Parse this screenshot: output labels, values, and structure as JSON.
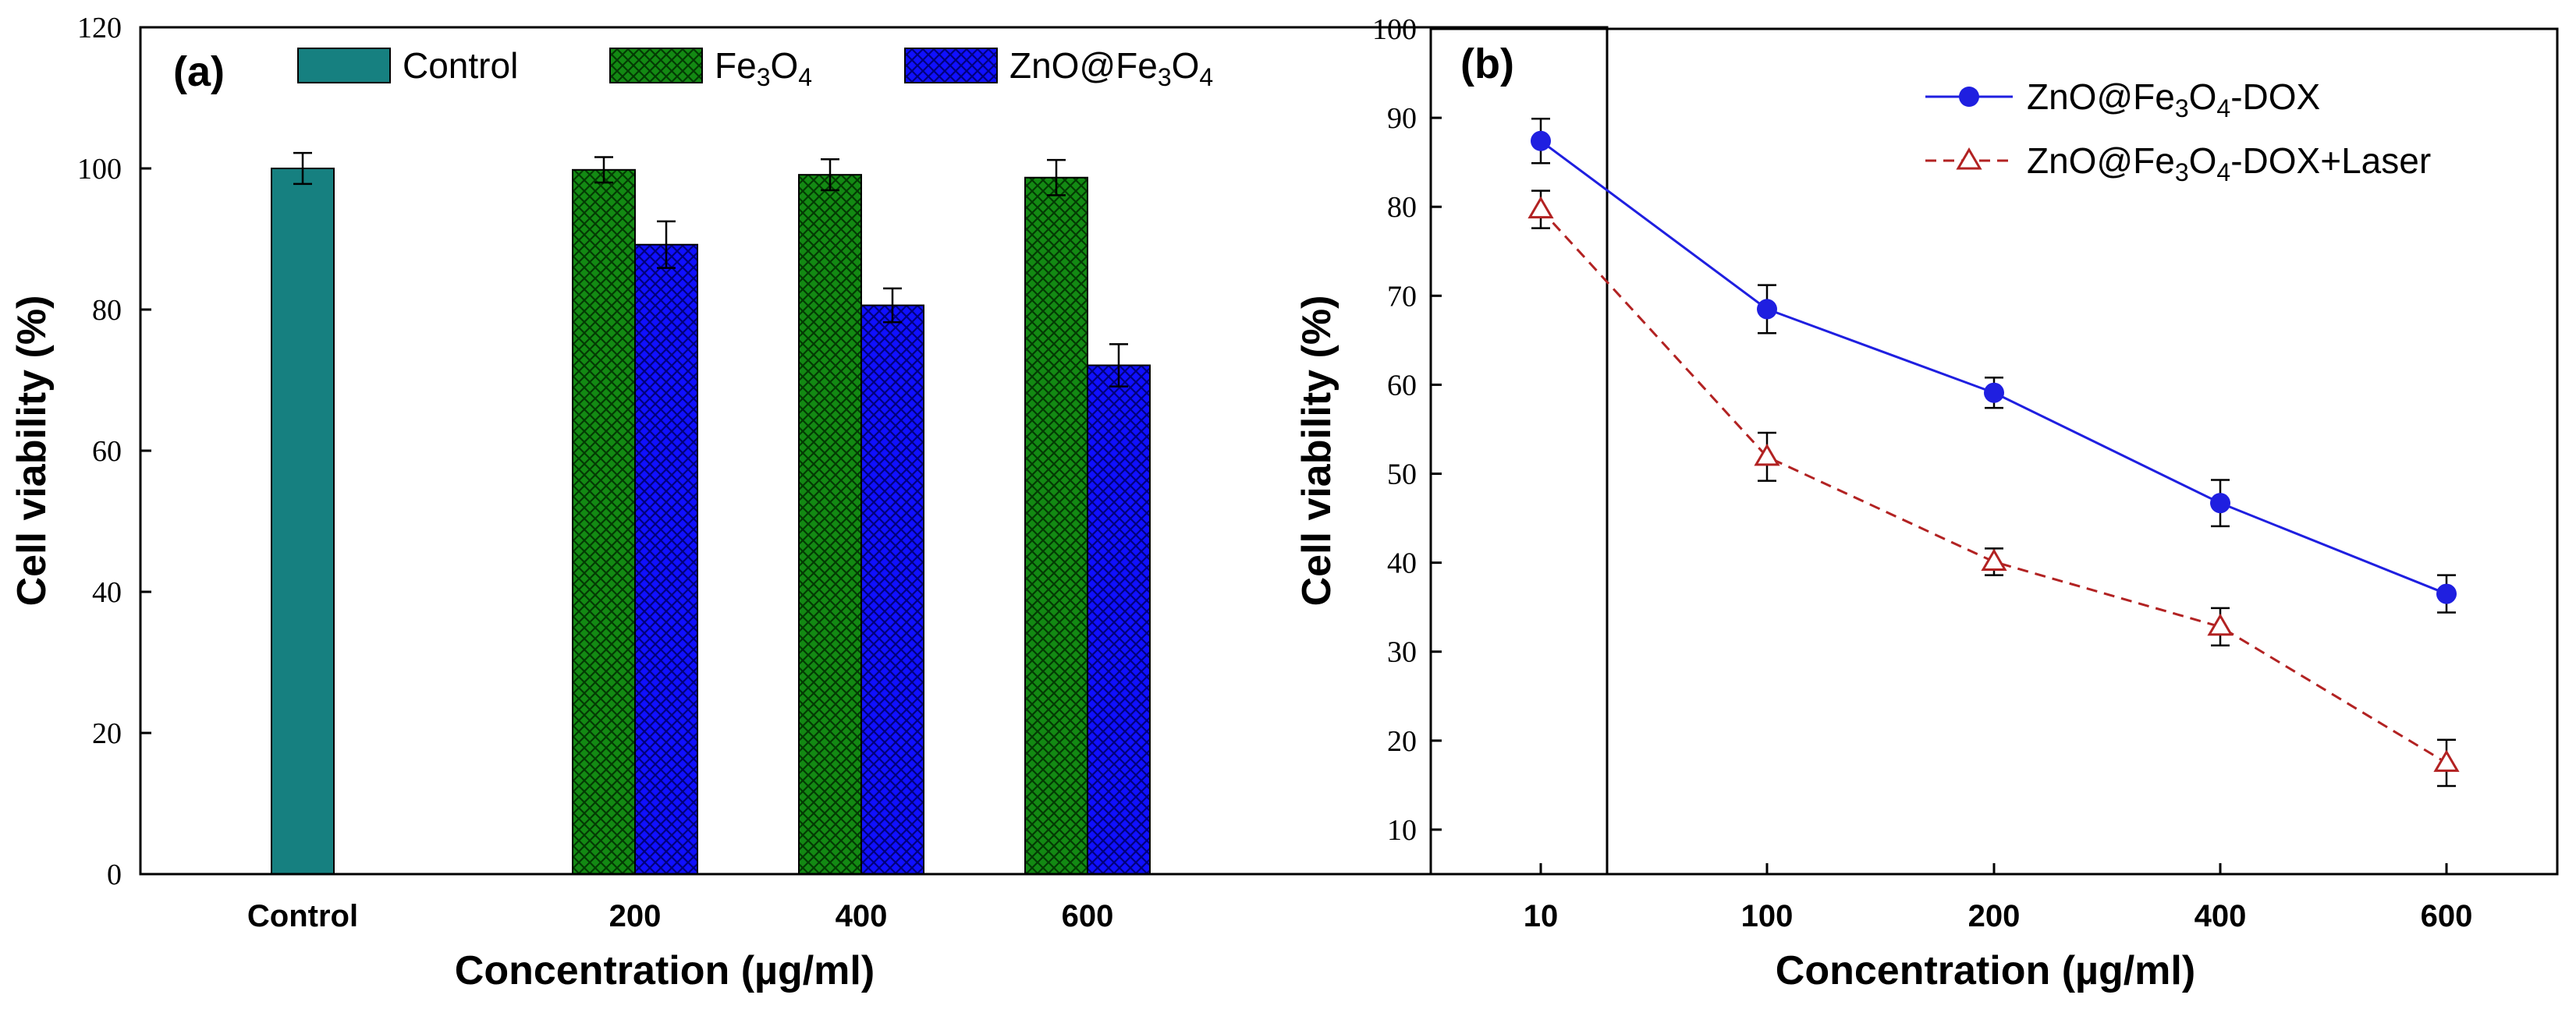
{
  "chart_data": [
    {
      "type": "bar",
      "panel_label": "(a)",
      "ylabel": "Cell viability (%)",
      "xlabel": "Concentration (µg/ml)",
      "ylim": [
        0,
        120
      ],
      "yticks": [
        0,
        20,
        40,
        60,
        80,
        100,
        120
      ],
      "categories": [
        "Control",
        "200",
        "400",
        "600"
      ],
      "legend_position": "top",
      "series": [
        {
          "name": "Control",
          "legend_parts": [
            "Control"
          ],
          "color": "#168080",
          "pattern": "solid",
          "values": [
            100,
            null,
            null,
            null
          ],
          "errors": [
            2.2,
            null,
            null,
            null
          ]
        },
        {
          "name": "Fe3O4",
          "legend_parts": [
            "Fe",
            "3",
            "O",
            "4"
          ],
          "color": "#0a6a0a",
          "pattern": "crosshatch",
          "values": [
            null,
            99.8,
            99.1,
            98.7
          ],
          "errors": [
            null,
            1.8,
            2.2,
            2.5
          ]
        },
        {
          "name": "ZnO@Fe3O4",
          "legend_parts": [
            "ZnO@Fe",
            "3",
            "O",
            "4"
          ],
          "color": "#0000ee",
          "pattern": "crosshatch",
          "values": [
            null,
            89.2,
            80.6,
            72.1
          ],
          "errors": [
            null,
            3.3,
            2.4,
            3.0
          ]
        }
      ]
    },
    {
      "type": "line",
      "panel_label": "(b)",
      "ylabel": "Cell viability (%)",
      "xlabel": "Concentration (µg/ml)",
      "ylim": [
        5,
        100
      ],
      "yticks": [
        10,
        20,
        30,
        40,
        50,
        60,
        70,
        80,
        90,
        100
      ],
      "categories": [
        "10",
        "100",
        "200",
        "400",
        "600"
      ],
      "legend_position": "top-right",
      "series": [
        {
          "name": "ZnO@Fe3O4-DOX",
          "legend_parts": [
            "ZnO@Fe",
            "3",
            "O",
            "4",
            "-DOX"
          ],
          "color": "#1f1fe0",
          "marker": "filled-circle",
          "line": "solid",
          "values": [
            87.4,
            68.5,
            59.1,
            46.7,
            36.5
          ],
          "errors": [
            2.5,
            2.7,
            1.7,
            2.6,
            2.1
          ]
        },
        {
          "name": "ZnO@Fe3O4-DOX+Laser",
          "legend_parts": [
            "ZnO@Fe",
            "3",
            "O",
            "4",
            "-DOX+Laser"
          ],
          "color": "#b22222",
          "marker": "open-triangle",
          "line": "dashed",
          "values": [
            79.7,
            51.9,
            40.1,
            32.8,
            17.5
          ],
          "errors": [
            2.1,
            2.7,
            1.5,
            2.1,
            2.6
          ]
        }
      ]
    }
  ]
}
